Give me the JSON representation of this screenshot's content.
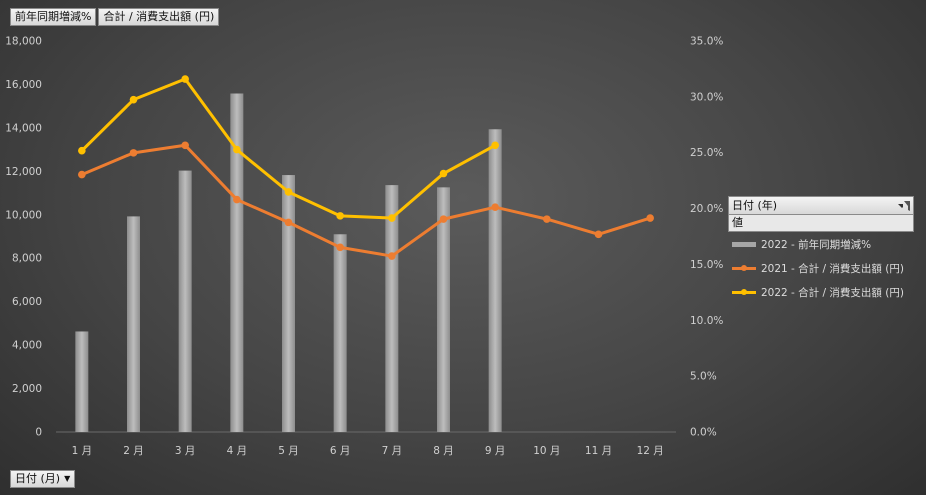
{
  "header_pills": [
    "前年同期増減%",
    "合計 / 消費支出額 (円)"
  ],
  "footer_pill": {
    "label": "日付 (月)"
  },
  "legend": {
    "title": "日付 (年)",
    "subtitle": "値",
    "items": [
      {
        "label": "2022 - 前年同期増減%",
        "kind": "bar",
        "color": "#a6a6a6"
      },
      {
        "label": "2021 - 合計 / 消費支出額 (円)",
        "kind": "line",
        "color": "#ed7d31"
      },
      {
        "label": "2022 - 合計 / 消費支出額 (円)",
        "kind": "line",
        "color": "#ffc000"
      }
    ]
  },
  "chart_data": {
    "type": "bar",
    "categories": [
      "1 月",
      "2 月",
      "3 月",
      "4 月",
      "5 月",
      "6 月",
      "7 月",
      "8 月",
      "9 月",
      "10 月",
      "11 月",
      "12 月"
    ],
    "series": [
      {
        "name": "2022 - 前年同期増減%",
        "type": "bar",
        "axis": "right",
        "color": "#a6a6a6",
        "values": [
          0.09,
          0.193,
          0.234,
          0.303,
          0.23,
          0.177,
          0.221,
          0.219,
          0.271,
          null,
          null,
          null
        ]
      },
      {
        "name": "2021 - 合計 / 消費支出額 (円)",
        "type": "line",
        "axis": "left",
        "color": "#ed7d31",
        "values": [
          11850,
          12850,
          13200,
          10700,
          9650,
          8500,
          8100,
          9800,
          10350,
          9800,
          9100,
          9850
        ]
      },
      {
        "name": "2022 - 合計 / 消費支出額 (円)",
        "type": "line",
        "axis": "left",
        "color": "#ffc000",
        "values": [
          12950,
          15300,
          16250,
          13000,
          11050,
          9950,
          9850,
          11900,
          13200,
          null,
          null,
          null
        ]
      }
    ],
    "y_left": {
      "min": 0,
      "max": 18000,
      "step": 2000,
      "tick_labels": [
        "0",
        "2,000",
        "4,000",
        "6,000",
        "8,000",
        "10,000",
        "12,000",
        "14,000",
        "16,000",
        "18,000"
      ]
    },
    "y_right": {
      "min": 0,
      "max": 0.35,
      "step": 0.05,
      "tick_labels": [
        "0.0%",
        "5.0%",
        "10.0%",
        "15.0%",
        "20.0%",
        "25.0%",
        "30.0%",
        "35.0%"
      ]
    },
    "grid": false,
    "legend_position": "right"
  }
}
